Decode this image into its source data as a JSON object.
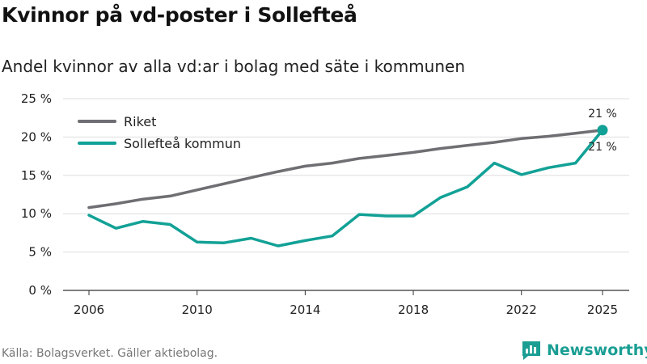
{
  "title": "Kvinnor på vd-poster i Sollefteå",
  "subtitle": "Andel kvinnor av alla vd:ar i bolag med säte i kommunen",
  "footer": "Källa: Bolagsverket. Gäller aktiebolag.",
  "brand": {
    "name": "Newsworthy",
    "color": "#1a9e93"
  },
  "chart_data": {
    "type": "line",
    "title": "Kvinnor på vd-poster i Sollefteå",
    "xlabel": "",
    "ylabel": "",
    "xlim": [
      2006,
      2025
    ],
    "ylim": [
      0,
      25
    ],
    "grid": true,
    "legend_position": "top-left",
    "x_ticks": [
      2006,
      2010,
      2014,
      2018,
      2022,
      2025
    ],
    "y_ticks": [
      0,
      5,
      10,
      15,
      20,
      25
    ],
    "y_tick_labels": [
      "0 %",
      "5 %",
      "10 %",
      "15 %",
      "20 %",
      "25 %"
    ],
    "x": [
      2006,
      2007,
      2008,
      2009,
      2010,
      2011,
      2012,
      2013,
      2014,
      2015,
      2016,
      2017,
      2018,
      2019,
      2020,
      2021,
      2022,
      2023,
      2024,
      2025
    ],
    "series": [
      {
        "name": "Riket",
        "color": "#6e6e73",
        "values": [
          10.8,
          11.3,
          11.9,
          12.3,
          13.1,
          13.9,
          14.7,
          15.5,
          16.2,
          16.6,
          17.2,
          17.6,
          18.0,
          18.5,
          18.9,
          19.3,
          19.8,
          20.1,
          20.5,
          20.9
        ],
        "end_label": "21 %"
      },
      {
        "name": "Sollefteå kommun",
        "color": "#12a196",
        "values": [
          9.8,
          8.1,
          9.0,
          8.6,
          6.3,
          6.2,
          6.8,
          5.8,
          6.5,
          7.1,
          9.9,
          9.7,
          9.7,
          12.1,
          13.5,
          16.6,
          15.1,
          16.0,
          16.6,
          20.9
        ],
        "end_label": "21 %"
      }
    ]
  }
}
